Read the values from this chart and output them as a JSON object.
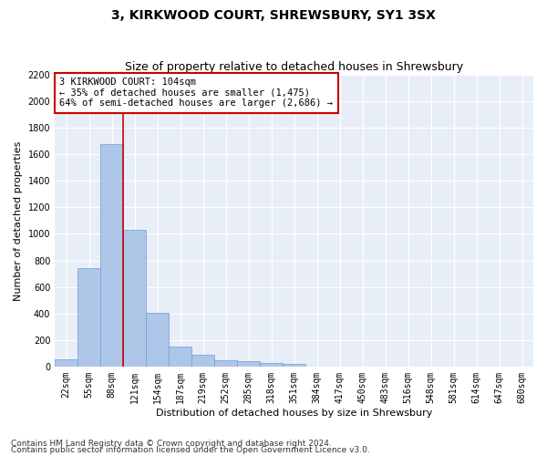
{
  "title": "3, KIRKWOOD COURT, SHREWSBURY, SY1 3SX",
  "subtitle": "Size of property relative to detached houses in Shrewsbury",
  "xlabel": "Distribution of detached houses by size in Shrewsbury",
  "ylabel": "Number of detached properties",
  "bin_labels": [
    "22sqm",
    "55sqm",
    "88sqm",
    "121sqm",
    "154sqm",
    "187sqm",
    "219sqm",
    "252sqm",
    "285sqm",
    "318sqm",
    "351sqm",
    "384sqm",
    "417sqm",
    "450sqm",
    "483sqm",
    "516sqm",
    "548sqm",
    "581sqm",
    "614sqm",
    "647sqm",
    "680sqm"
  ],
  "bar_values": [
    55,
    740,
    1675,
    1030,
    405,
    150,
    85,
    48,
    40,
    28,
    20,
    0,
    0,
    0,
    0,
    0,
    0,
    0,
    0,
    0,
    0
  ],
  "bar_color": "#aec6e8",
  "bar_edge_color": "#6a9fd8",
  "bar_edge_width": 0.5,
  "ylim": [
    0,
    2200
  ],
  "yticks": [
    0,
    200,
    400,
    600,
    800,
    1000,
    1200,
    1400,
    1600,
    1800,
    2000,
    2200
  ],
  "property_line_x": 2.485,
  "annotation_text": "3 KIRKWOOD COURT: 104sqm\n← 35% of detached houses are smaller (1,475)\n64% of semi-detached houses are larger (2,686) →",
  "annotation_box_color": "#ffffff",
  "annotation_box_edge_color": "#cc0000",
  "red_line_color": "#cc0000",
  "footer_line1": "Contains HM Land Registry data © Crown copyright and database right 2024.",
  "footer_line2": "Contains public sector information licensed under the Open Government Licence v3.0.",
  "bg_color": "#e8eef8",
  "grid_color": "#ffffff",
  "fig_bg_color": "#ffffff",
  "title_fontsize": 10,
  "subtitle_fontsize": 9,
  "axis_label_fontsize": 8,
  "tick_fontsize": 7,
  "annotation_fontsize": 7.5,
  "footer_fontsize": 6.5
}
